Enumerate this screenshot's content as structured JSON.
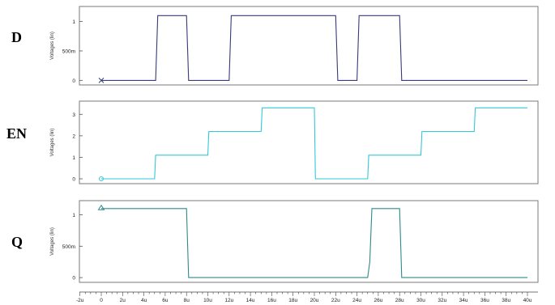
{
  "chart_data": [
    {
      "type": "line",
      "label": "D",
      "ylabel": "Voltages (lin)",
      "xlim": [
        -2,
        40
      ],
      "ylim": [
        -0.05,
        1.2
      ],
      "yticks": [
        {
          "value": 0,
          "label": "0"
        },
        {
          "value": 0.5,
          "label": "500m"
        },
        {
          "value": 1,
          "label": "1"
        }
      ],
      "color": "#3a3a78",
      "marker": "x",
      "series": [
        {
          "x": [
            0,
            5.1,
            5.3,
            8,
            8.2,
            12,
            12.2,
            22,
            22.2,
            24,
            24.2,
            28,
            28.2,
            40
          ],
          "y": [
            0,
            0,
            1.1,
            1.1,
            0,
            0,
            1.1,
            1.1,
            0,
            0,
            1.1,
            1.1,
            0,
            0
          ]
        }
      ]
    },
    {
      "type": "line",
      "label": "EN",
      "ylabel": "Voltages (lin)",
      "xlim": [
        -2,
        40
      ],
      "ylim": [
        -0.15,
        3.5
      ],
      "yticks": [
        {
          "value": 0,
          "label": "0"
        },
        {
          "value": 1,
          "label": "1"
        },
        {
          "value": 2,
          "label": "2"
        },
        {
          "value": 3,
          "label": "3"
        }
      ],
      "color": "#33c8d8",
      "marker": "o",
      "series": [
        {
          "x": [
            0,
            5,
            5.1,
            10,
            10.1,
            15,
            15.1,
            20,
            20.1,
            25,
            25.1,
            30,
            30.1,
            35,
            35.1,
            40
          ],
          "y": [
            0,
            0,
            1.1,
            1.1,
            2.2,
            2.2,
            3.3,
            3.3,
            0,
            0,
            1.1,
            1.1,
            2.2,
            2.2,
            3.3,
            3.3
          ]
        }
      ]
    },
    {
      "type": "line",
      "label": "Q",
      "ylabel": "Voltages (lin)",
      "xlim": [
        -2,
        40
      ],
      "ylim": [
        -0.05,
        1.2
      ],
      "yticks": [
        {
          "value": 0,
          "label": "0"
        },
        {
          "value": 0.5,
          "label": "500m"
        },
        {
          "value": 1,
          "label": "1"
        }
      ],
      "color": "#2e8a8a",
      "marker": "triangle",
      "series": [
        {
          "x": [
            0,
            8,
            8.2,
            25,
            25.2,
            25.4,
            28,
            28.2,
            40
          ],
          "y": [
            1.1,
            1.1,
            0,
            0,
            0.25,
            1.1,
            1.1,
            0,
            0
          ]
        }
      ]
    }
  ],
  "xaxis": {
    "ticks": [
      {
        "value": -2,
        "label": "-2u"
      },
      {
        "value": 0,
        "label": "0"
      },
      {
        "value": 2,
        "label": "2u"
      },
      {
        "value": 4,
        "label": "4u"
      },
      {
        "value": 6,
        "label": "6u"
      },
      {
        "value": 8,
        "label": "8u"
      },
      {
        "value": 10,
        "label": "10u"
      },
      {
        "value": 12,
        "label": "12u"
      },
      {
        "value": 14,
        "label": "14u"
      },
      {
        "value": 16,
        "label": "16u"
      },
      {
        "value": 18,
        "label": "18u"
      },
      {
        "value": 20,
        "label": "20u"
      },
      {
        "value": 22,
        "label": "22u"
      },
      {
        "value": 24,
        "label": "24u"
      },
      {
        "value": 26,
        "label": "26u"
      },
      {
        "value": 28,
        "label": "28u"
      },
      {
        "value": 30,
        "label": "30u"
      },
      {
        "value": 32,
        "label": "32u"
      },
      {
        "value": 34,
        "label": "34u"
      },
      {
        "value": 36,
        "label": "36u"
      },
      {
        "value": 38,
        "label": "38u"
      },
      {
        "value": 40,
        "label": "40u"
      }
    ]
  }
}
